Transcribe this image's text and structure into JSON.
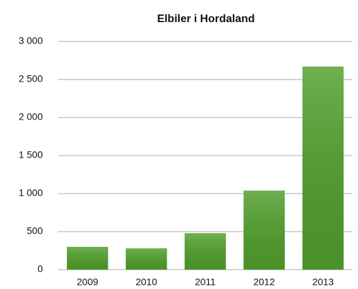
{
  "chart_data": {
    "type": "bar",
    "title": "Elbiler i Hordaland",
    "categories": [
      "2009",
      "2010",
      "2011",
      "2012",
      "2013"
    ],
    "values": [
      300,
      280,
      480,
      1040,
      2670
    ],
    "color": "#4f9e2a",
    "ylim": [
      0,
      3000
    ],
    "yticks": [
      0,
      500,
      {
        "value": 1000,
        "label": "1 000"
      },
      {
        "value": 1500,
        "label": "1 500"
      },
      {
        "value": 2000,
        "label": "2 000"
      },
      {
        "value": 2500,
        "label": "2 500"
      },
      {
        "value": 3000,
        "label": "3 000"
      }
    ],
    "grid": true
  }
}
